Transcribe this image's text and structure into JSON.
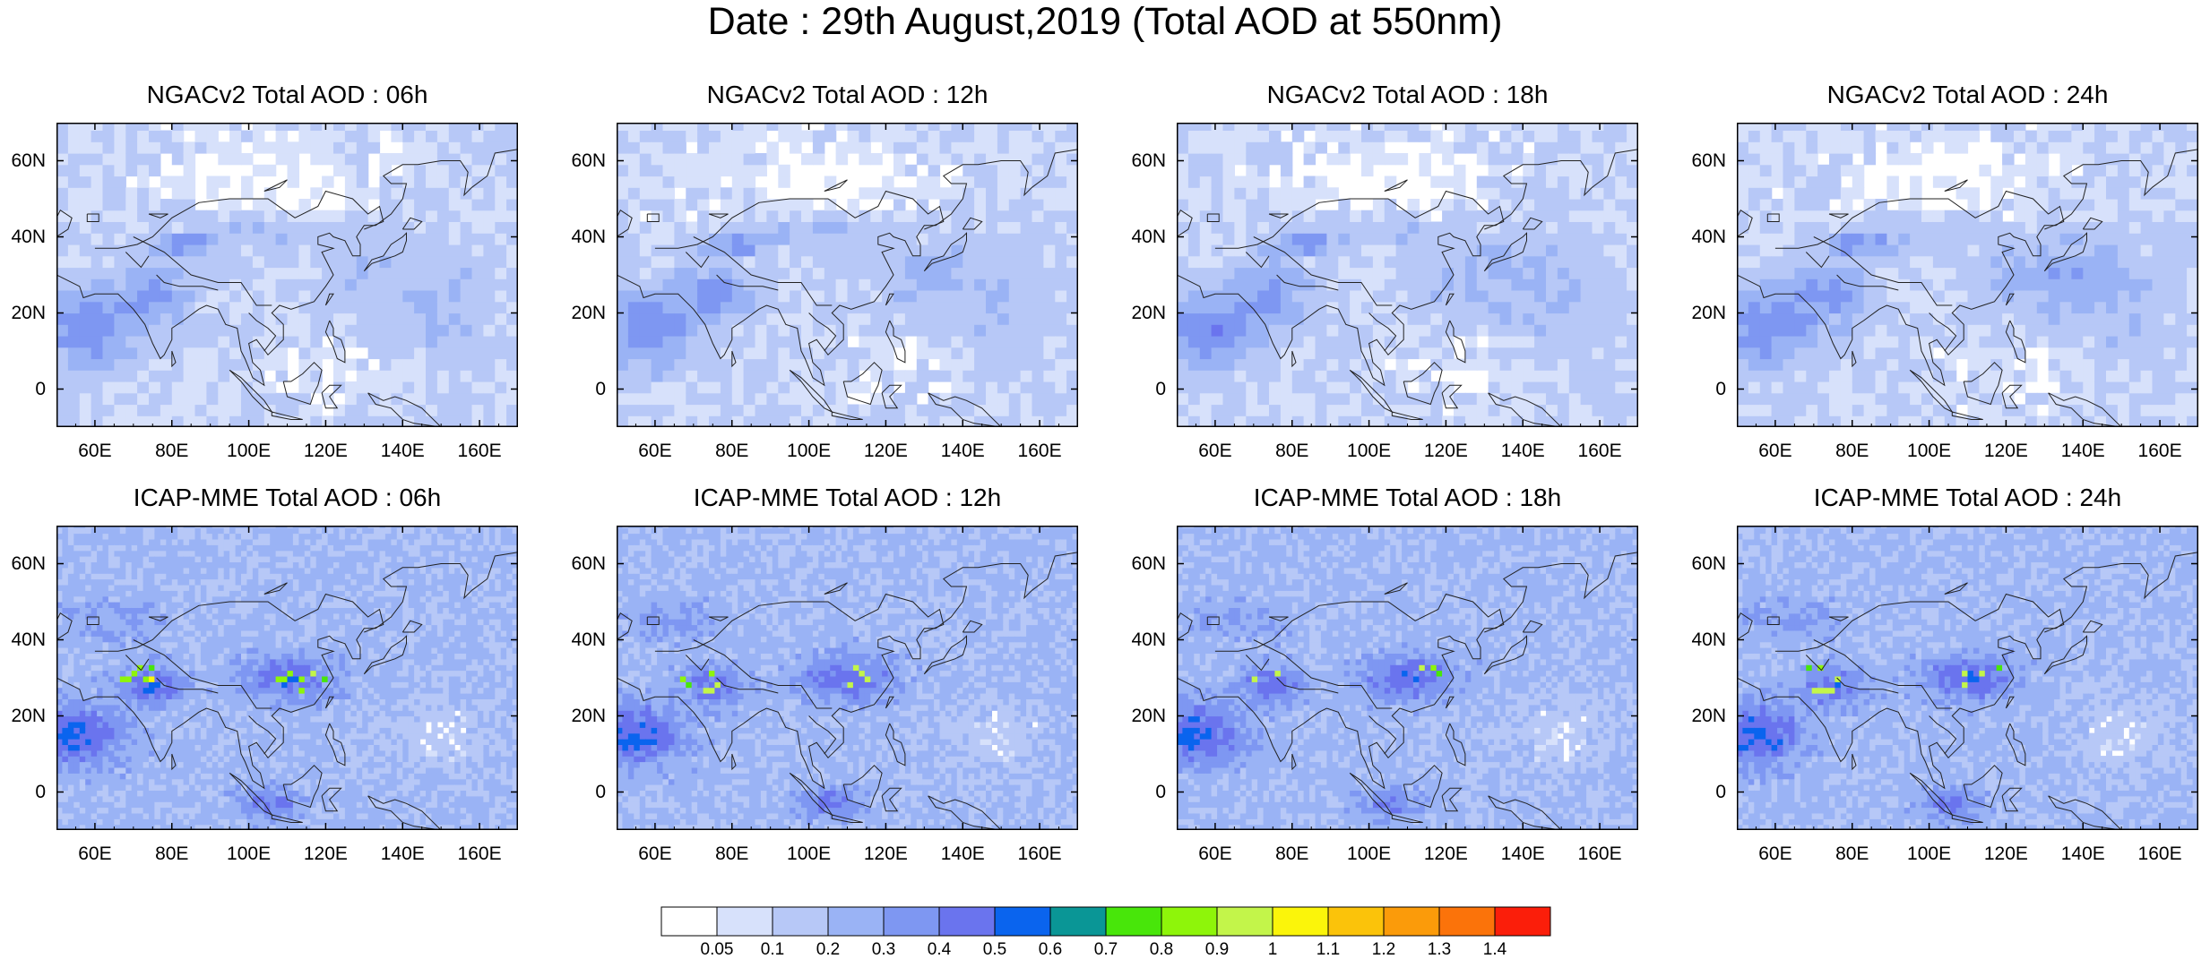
{
  "title": "Date : 29th August,2019 (Total AOD at 550nm)",
  "panels": [
    {
      "title": "NGACv2 Total AOD : 06h",
      "model": "ngac",
      "hour": "06h"
    },
    {
      "title": "NGACv2 Total AOD : 12h",
      "model": "ngac",
      "hour": "12h"
    },
    {
      "title": "NGACv2 Total AOD : 18h",
      "model": "ngac",
      "hour": "18h"
    },
    {
      "title": "NGACv2 Total AOD : 24h",
      "model": "ngac",
      "hour": "24h"
    },
    {
      "title": "ICAP-MME Total AOD : 06h",
      "model": "icap",
      "hour": "06h"
    },
    {
      "title": "ICAP-MME Total AOD : 12h",
      "model": "icap",
      "hour": "12h"
    },
    {
      "title": "ICAP-MME Total AOD : 18h",
      "model": "icap",
      "hour": "18h"
    },
    {
      "title": "ICAP-MME Total AOD : 24h",
      "model": "icap",
      "hour": "24h"
    }
  ],
  "axes": {
    "x_ticks": [
      "60E",
      "80E",
      "100E",
      "120E",
      "140E",
      "160E"
    ],
    "y_ticks": [
      "60N",
      "40N",
      "20N",
      "0"
    ]
  },
  "colorbar": {
    "labels": [
      "0.05",
      "0.1",
      "0.2",
      "0.3",
      "0.4",
      "0.5",
      "0.6",
      "0.7",
      "0.8",
      "0.9",
      "1",
      "1.1",
      "1.2",
      "1.3",
      "1.4"
    ],
    "colors": [
      "#ffffff",
      "#d7e1fb",
      "#b7c8f7",
      "#9ab3f5",
      "#7e97f2",
      "#6a74ee",
      "#0a64ee",
      "#0a9696",
      "#48e60a",
      "#8ef50a",
      "#c3f54a",
      "#fbf50a",
      "#fbc30a",
      "#fb9b0a",
      "#fb730a",
      "#fb1e0a"
    ]
  },
  "chart_data": {
    "type": "heatmap",
    "title": "Date : 29th August,2019 (Total AOD at 550nm)",
    "variable": "Total AOD at 550nm",
    "date": "29th August,2019",
    "xlim": [
      50,
      170
    ],
    "ylim": [
      -10,
      70
    ],
    "x_ticks": [
      60,
      80,
      100,
      120,
      140,
      160
    ],
    "y_ticks": [
      60,
      40,
      20,
      0
    ],
    "levels": [
      0.05,
      0.1,
      0.2,
      0.3,
      0.4,
      0.5,
      0.6,
      0.7,
      0.8,
      0.9,
      1,
      1.1,
      1.2,
      1.3,
      1.4
    ],
    "panels": [
      {
        "name": "NGACv2 Total AOD : 06h",
        "typical_range": [
          0.05,
          0.5
        ],
        "max_range": [
          0.4,
          0.5
        ]
      },
      {
        "name": "NGACv2 Total AOD : 12h",
        "typical_range": [
          0.05,
          0.5
        ],
        "max_range": [
          0.4,
          0.5
        ]
      },
      {
        "name": "NGACv2 Total AOD : 18h",
        "typical_range": [
          0.05,
          0.5
        ],
        "max_range": [
          0.4,
          0.5
        ]
      },
      {
        "name": "NGACv2 Total AOD : 24h",
        "typical_range": [
          0.05,
          0.5
        ],
        "max_range": [
          0.4,
          0.5
        ]
      },
      {
        "name": "ICAP-MME Total AOD : 06h",
        "typical_range": [
          0.1,
          0.6
        ],
        "max_range": [
          0.9,
          1.2
        ]
      },
      {
        "name": "ICAP-MME Total AOD : 12h",
        "typical_range": [
          0.1,
          0.6
        ],
        "max_range": [
          0.8,
          1.0
        ]
      },
      {
        "name": "ICAP-MME Total AOD : 18h",
        "typical_range": [
          0.1,
          0.6
        ],
        "max_range": [
          0.8,
          1.1
        ]
      },
      {
        "name": "ICAP-MME Total AOD : 24h",
        "typical_range": [
          0.1,
          0.6
        ],
        "max_range": [
          0.8,
          1.0
        ]
      }
    ]
  }
}
